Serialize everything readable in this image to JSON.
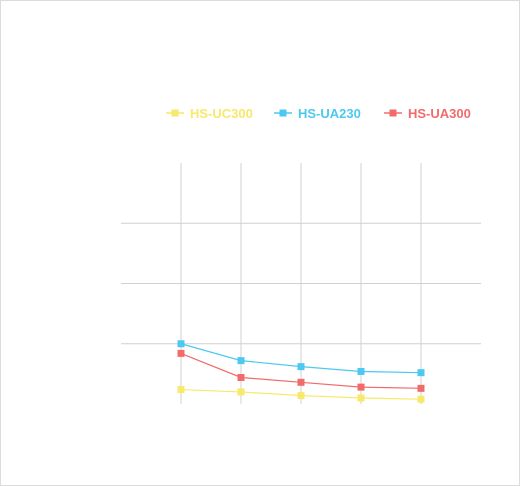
{
  "colors": {
    "grid": "#d0d0d0",
    "background": "#ffffff"
  },
  "chart_data": {
    "type": "line",
    "title": "",
    "xlabel": "",
    "ylabel": "",
    "x": [
      1,
      2,
      3,
      4,
      5
    ],
    "xlim": [
      0,
      6
    ],
    "ylim": [
      0,
      1
    ],
    "grid": true,
    "legend_position": "top-center",
    "series": [
      {
        "name": "HS-UC300",
        "color": "#f7e96a",
        "marker": "square",
        "values": [
          0.06,
          0.05,
          0.035,
          0.025,
          0.02
        ]
      },
      {
        "name": "HS-UA230",
        "color": "#4cc9f0",
        "marker": "square",
        "values": [
          0.25,
          0.18,
          0.155,
          0.135,
          0.13
        ]
      },
      {
        "name": "HS-UA300",
        "color": "#f26b6b",
        "marker": "square",
        "values": [
          0.21,
          0.11,
          0.09,
          0.07,
          0.065
        ]
      }
    ]
  }
}
